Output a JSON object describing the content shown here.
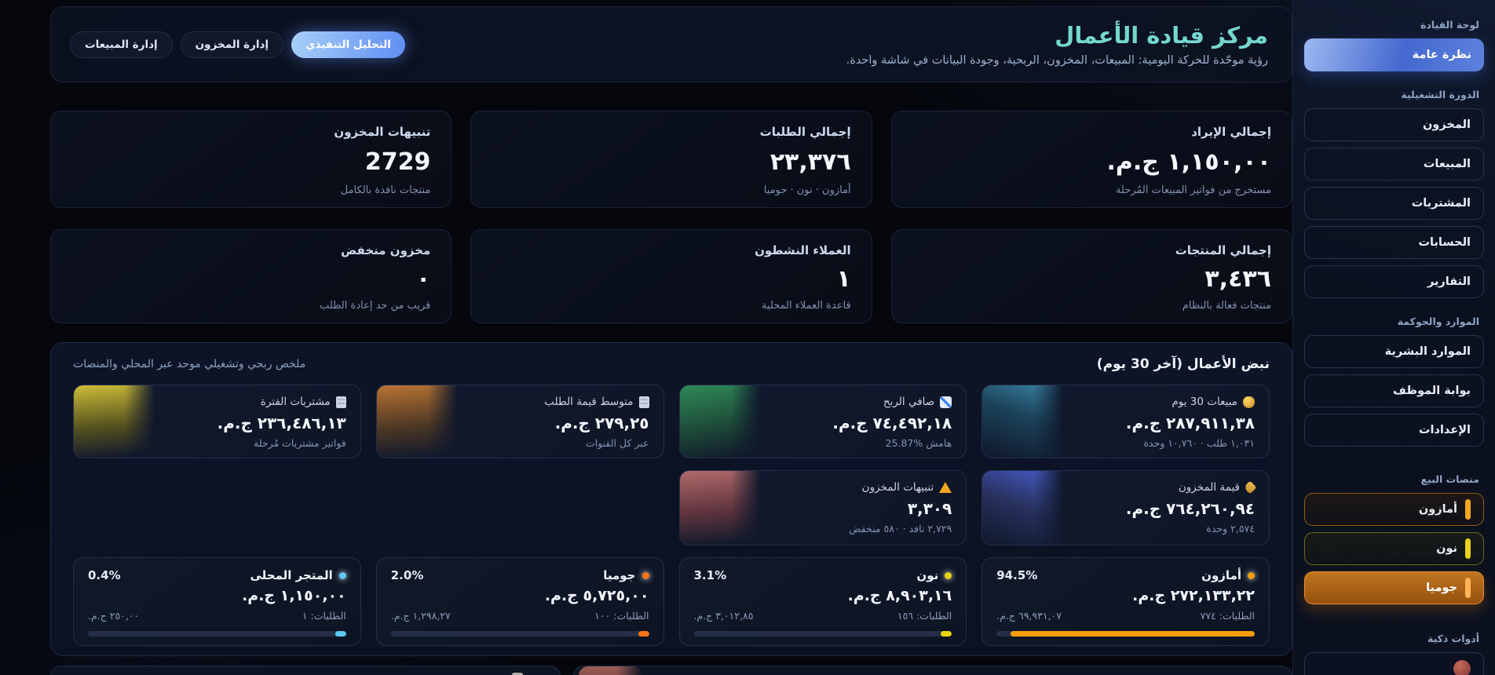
{
  "header": {
    "title": "مركز قيادة الأعمال",
    "subtitle": "رؤية موحّدة للحركة اليومية: المبيعات، المخزون، الربحية، وجودة البيانات في شاشة واحدة.",
    "tabs": [
      {
        "label": "التحليل التنفيذي",
        "active": true
      },
      {
        "label": "إدارة المخزون",
        "active": false
      },
      {
        "label": "إدارة المبيعات",
        "active": false
      }
    ]
  },
  "kpis": [
    {
      "label": "إجمالي الإيراد",
      "value": "١,١٥٠,٠٠ ج.م.",
      "sub": "مستخرج من فواتير المبيعات المُرحلة"
    },
    {
      "label": "إجمالي الطلبات",
      "value": "٢٣,٣٧٦",
      "sub": "أمازون · نون · جوميا"
    },
    {
      "label": "تنبيهات المخزون",
      "value": "2729",
      "sub": "منتجات نافدة بالكامل"
    },
    {
      "label": "إجمالي المنتجات",
      "value": "٣,٤٣٦",
      "sub": "منتجات فعالة بالنظام"
    },
    {
      "label": "العملاء النشطون",
      "value": "١",
      "sub": "قاعدة العملاء المحلية"
    },
    {
      "label": "مخزون منخفض",
      "value": "٠",
      "sub": "قريب من حد إعادة الطلب"
    }
  ],
  "pulse": {
    "title": "نبض الأعمال (آخر 30 يوم)",
    "subtitle": "ملخص ربحي وتشغيلي موحد عبر المحلي والمنصات",
    "cards": [
      {
        "icon": "money-bag-icon",
        "label": "مبيعات 30 يوم",
        "value": "٢٨٧,٩١١,٣٨ ج.م.",
        "sub": "١,٠٣١ طلب · ١٠,٧٦٠ وحدة"
      },
      {
        "icon": "chart-up-icon",
        "label": "صافي الربح",
        "value": "٧٤,٤٩٢,١٨ ج.م.",
        "sub": "هامش %25.87"
      },
      {
        "icon": "receipt-icon",
        "label": "متوسط قيمة الطلب",
        "value": "٢٧٩,٢٥ ج.م.",
        "sub": "عبر كل القنوات"
      },
      {
        "icon": "invoice-icon",
        "label": "مشتريات الفترة",
        "value": "٢٣٦,٤٨٦,١٣ ج.م.",
        "sub": "فواتير مشتريات مُرحلة"
      },
      {
        "icon": "tag-icon",
        "label": "قيمة المخزون",
        "value": "٧٦٤,٢٦٠,٩٤ ج.م.",
        "sub": "٢,٥٧٤ وحدة"
      },
      {
        "icon": "warning-icon",
        "label": "تنبيهات المخزون",
        "value": "٣,٣٠٩",
        "sub": "٢,٧٢٩ نافد · ٥٨٠ منخفض"
      }
    ]
  },
  "platforms": [
    {
      "name": "أمازون",
      "pct_label": "94.5%",
      "pct": 94.5,
      "value": "٢٧٢,١٣٣,٢٢ ج.م.",
      "orders": "الطلبات: ٧٧٤",
      "amount": "٦٩,٩٣١,٠٧ ج.م.",
      "color": "#f59e0b"
    },
    {
      "name": "نون",
      "pct_label": "3.1%",
      "pct": 3.1,
      "value": "٨,٩٠٣,١٦ ج.م.",
      "orders": "الطلبات: ١٥٦",
      "amount": "٣,٠١٢,٨٥ ج.م.",
      "color": "#ead308"
    },
    {
      "name": "جوميا",
      "pct_label": "2.0%",
      "pct": 2.0,
      "value": "٥,٧٢٥,٠٠ ج.م.",
      "orders": "الطلبات: ١٠٠",
      "amount": "١,٢٩٨,٢٧ ج.م.",
      "color": "#f97316"
    },
    {
      "name": "المتجر المحلى",
      "pct_label": "0.4%",
      "pct": 0.4,
      "value": "١,١٥٠,٠٠ ج.م.",
      "orders": "الطلبات: ١",
      "amount": "٢٥٠,٠٠ ج.م.",
      "color": "#5bc8f5"
    }
  ],
  "sidebar": {
    "sections": [
      {
        "title": "لوحة القيادة",
        "items": [
          {
            "label": "نظرة عامة",
            "active": true
          }
        ]
      },
      {
        "title": "الدورة التشغيلية",
        "items": [
          {
            "label": "المخزون"
          },
          {
            "label": "المبيعات"
          },
          {
            "label": "المشتريات"
          },
          {
            "label": "الحسابات"
          },
          {
            "label": "التقارير"
          }
        ]
      },
      {
        "title": "الموارد والحوكمة",
        "items": [
          {
            "label": "الموارد البشرية"
          },
          {
            "label": "بوابة الموظف"
          },
          {
            "label": "الإعدادات"
          }
        ]
      },
      {
        "title": "منصات البيع",
        "items": [
          {
            "label": "أمازون",
            "color": "#f5a623"
          },
          {
            "label": "نون",
            "color": "#e8d41c"
          },
          {
            "label": "جوميا",
            "color": "#ffb357",
            "active": true
          }
        ]
      },
      {
        "title": "أدوات ذكية",
        "items": []
      }
    ]
  }
}
